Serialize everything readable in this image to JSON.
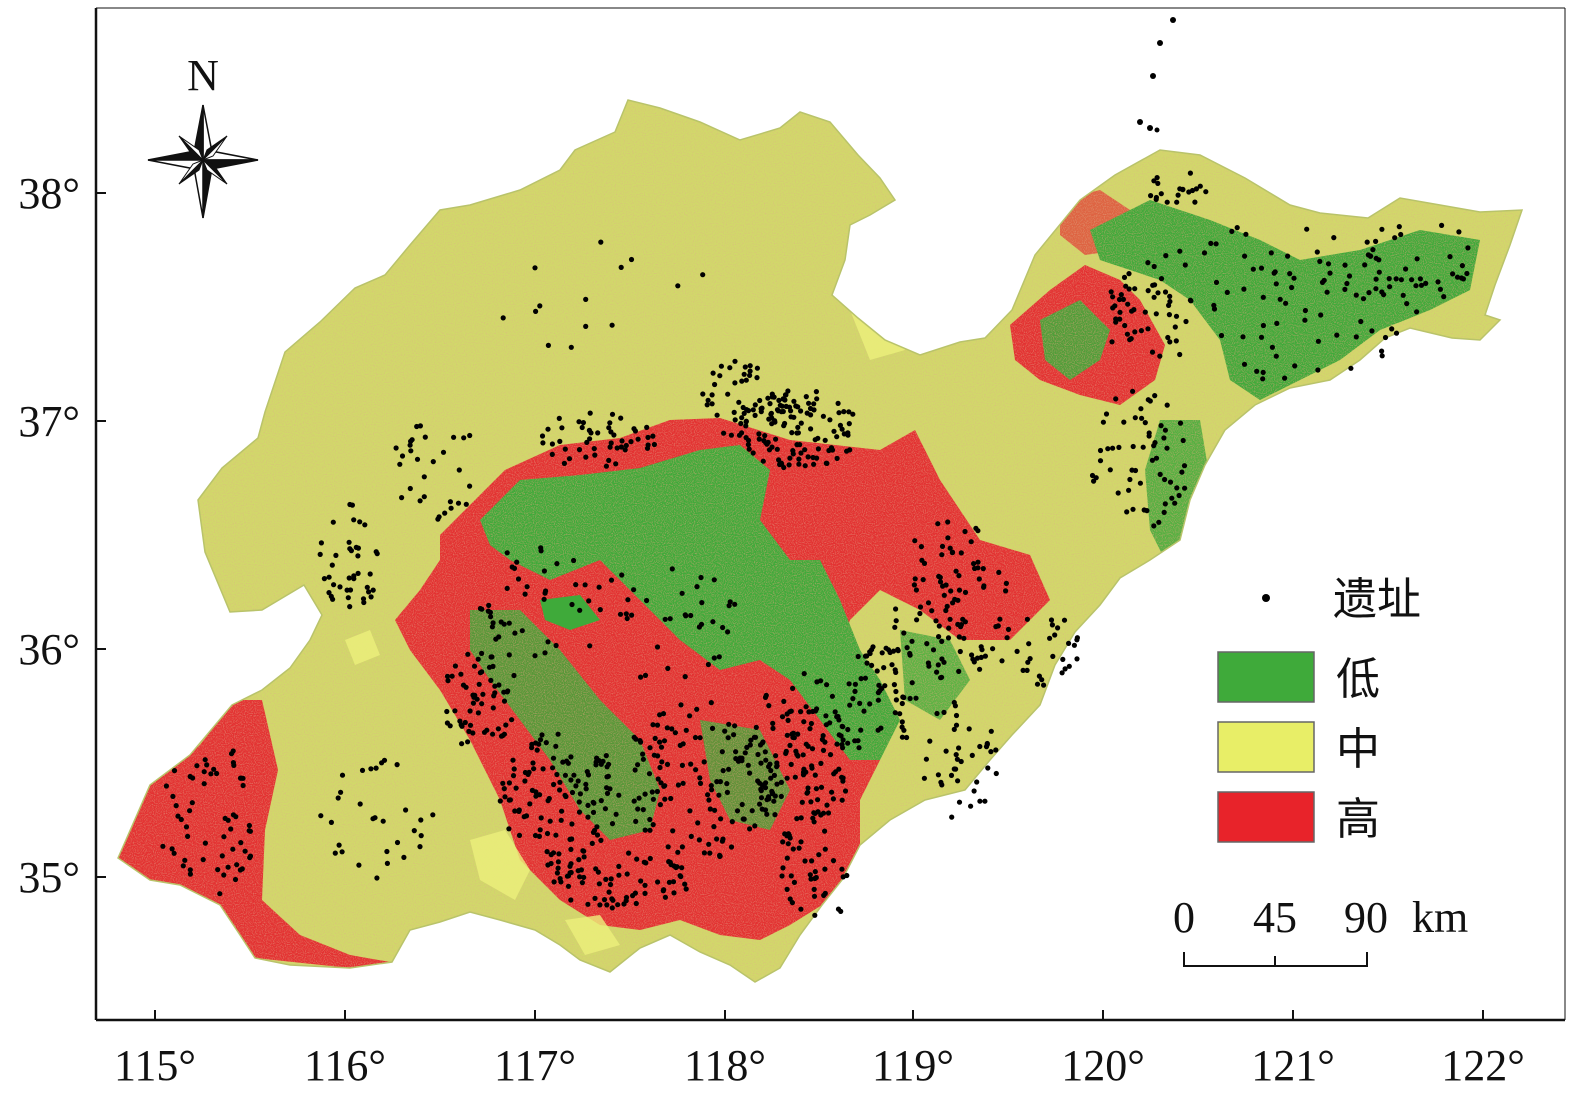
{
  "map": {
    "x_ticks": [
      "115°",
      "116°",
      "117°",
      "118°",
      "119°",
      "120°",
      "121°",
      "122°"
    ],
    "y_ticks": [
      "38°",
      "37°",
      "36°",
      "35°"
    ],
    "north_label": "N"
  },
  "legend": {
    "site_label": "遗址",
    "classes": [
      {
        "label": "低",
        "color": "#3faa3a"
      },
      {
        "label": "中",
        "color": "#e8ee67"
      },
      {
        "label": "高",
        "color": "#e8232a"
      }
    ]
  },
  "scale_bar": {
    "labels": [
      "0",
      "45",
      "90",
      "km"
    ]
  },
  "colors": {
    "low": "#3faa3a",
    "medium": "#d6df6a",
    "high": "#e8232a",
    "site": "#000000"
  }
}
